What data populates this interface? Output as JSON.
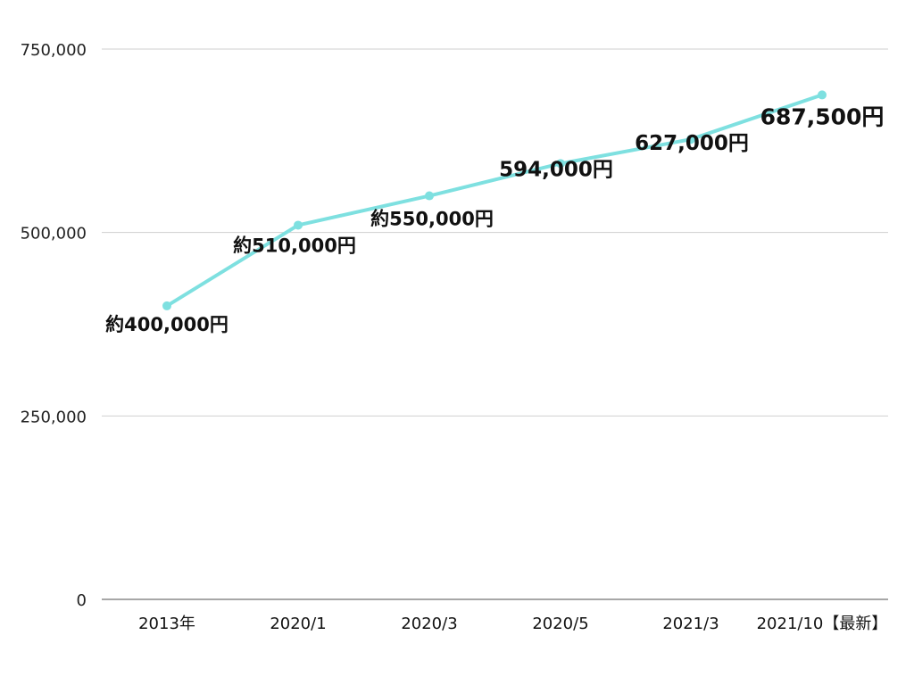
{
  "chart_data": {
    "type": "line",
    "categories": [
      "2013年",
      "2020/1",
      "2020/3",
      "2020/5",
      "2021/3",
      "2021/10【最新】"
    ],
    "values": [
      400000,
      510000,
      550000,
      594000,
      627000,
      687500
    ],
    "data_labels": [
      "約400,000円",
      "約510,000円",
      "約550,000円",
      "594,000円",
      "627,000円",
      "687,500円"
    ],
    "y_ticks": [
      "0",
      "250,000",
      "500,000",
      "750,000"
    ],
    "y_tick_values": [
      0,
      250000,
      500000,
      750000
    ],
    "ylim": [
      0,
      750000
    ],
    "grid": true,
    "legend": "none",
    "colors": {
      "line": "#7ee0e0",
      "point": "#7ee0e0"
    }
  }
}
